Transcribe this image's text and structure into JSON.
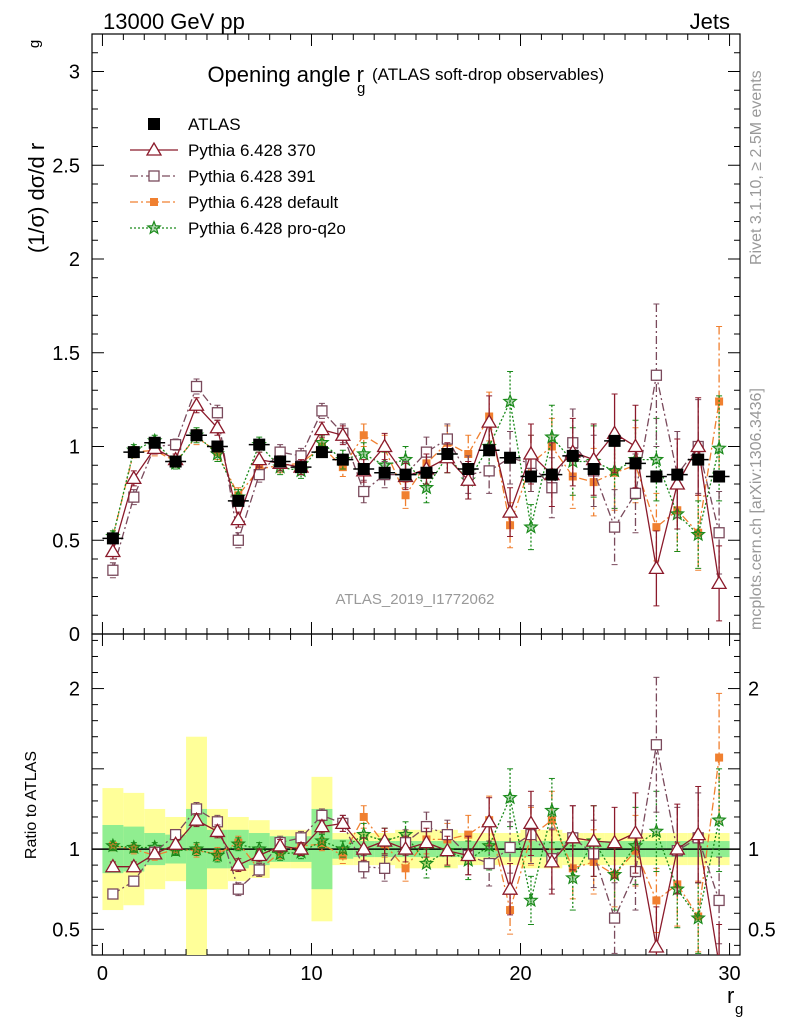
{
  "header": {
    "energy_label": "13000 GeV pp",
    "process_label": "Jets"
  },
  "side_labels": {
    "rivet": "Rivet 3.1.10, ≥ 2.5M events",
    "mcplots": "mcplots.cern.ch [arXiv:1306.3436]"
  },
  "watermark": "ATLAS_2019_I1772062",
  "colors": {
    "atlas": "#000000",
    "p370": "#8b1a2b",
    "p391": "#7a4a5c",
    "default": "#f08030",
    "proq2o": "#1a8a1a",
    "band_inner": "#90ee90",
    "band_outer": "#ffff99"
  },
  "chart_data": [
    {
      "type": "scatter",
      "title_main": "Opening angle r",
      "title_sub": "g",
      "title_extra": "(ATLAS soft-drop observables)",
      "ylabel": "(1/σ) dσ/d r",
      "ylabel_sub": "g",
      "ylim": [
        0,
        3.2
      ],
      "xlim": [
        -0.5,
        30.5
      ],
      "yticks": [
        {
          "v": 0.5,
          "label": "0.5"
        },
        {
          "v": 1,
          "label": "1"
        },
        {
          "v": 1.5,
          "label": "1.5"
        },
        {
          "v": 2,
          "label": "2"
        },
        {
          "v": 2.5,
          "label": "2.5"
        },
        {
          "v": 3,
          "label": "3"
        },
        {
          "v": 0,
          "label": "0"
        }
      ],
      "legend_position": "top-left",
      "x": [
        0.5,
        1.5,
        2.5,
        3.5,
        4.5,
        5.5,
        6.5,
        7.5,
        8.5,
        9.5,
        10.5,
        11.5,
        12.5,
        13.5,
        14.5,
        15.5,
        16.5,
        17.5,
        18.5,
        19.5,
        20.5,
        21.5,
        22.5,
        23.5,
        24.5,
        25.5,
        26.5,
        27.5,
        28.5,
        29.5
      ],
      "series": [
        {
          "key": "atlas",
          "name": "ATLAS",
          "marker": "filled-square",
          "line": "none",
          "values": [
            0.51,
            0.97,
            1.02,
            0.92,
            1.06,
            1.0,
            0.71,
            1.01,
            0.92,
            0.89,
            0.97,
            0.93,
            0.88,
            0.86,
            0.85,
            0.86,
            0.96,
            0.88,
            0.98,
            0.94,
            0.84,
            0.85,
            0.95,
            0.88,
            1.03,
            0.91,
            0.84,
            0.85,
            0.93,
            0.84
          ],
          "err": [
            0.03,
            0.03,
            0.03,
            0.03,
            0.03,
            0.03,
            0.03,
            0.03,
            0.03,
            0.03,
            0.03,
            0.03,
            0.03,
            0.03,
            0.03,
            0.03,
            0.03,
            0.03,
            0.03,
            0.03,
            0.03,
            0.03,
            0.03,
            0.03,
            0.03,
            0.03,
            0.03,
            0.03,
            0.03,
            0.03
          ]
        },
        {
          "key": "p370",
          "name": "Pythia 6.428 370",
          "marker": "open-triangle",
          "line": "solid",
          "values": [
            0.44,
            0.83,
            0.99,
            0.93,
            1.22,
            1.1,
            0.61,
            0.93,
            0.91,
            0.89,
            1.09,
            1.06,
            0.87,
            1.0,
            0.84,
            0.88,
            0.94,
            0.82,
            1.13,
            0.65,
            0.96,
            0.85,
            0.97,
            0.93,
            1.07,
            1.0,
            0.35,
            0.8,
            1.0,
            0.27
          ],
          "err": [
            0.04,
            0.04,
            0.03,
            0.03,
            0.04,
            0.04,
            0.04,
            0.04,
            0.04,
            0.04,
            0.04,
            0.05,
            0.06,
            0.07,
            0.07,
            0.08,
            0.08,
            0.1,
            0.14,
            0.13,
            0.16,
            0.17,
            0.18,
            0.19,
            0.21,
            0.22,
            0.2,
            0.24,
            0.26,
            0.2
          ]
        },
        {
          "key": "p391",
          "name": "Pythia 6.428 391",
          "marker": "open-square",
          "line": "dashdot",
          "values": [
            0.34,
            0.73,
            1.0,
            1.01,
            1.32,
            1.18,
            0.5,
            0.85,
            0.97,
            0.95,
            1.19,
            1.07,
            0.76,
            0.85,
            0.85,
            0.97,
            1.04,
            0.85,
            0.87,
            0.94,
            0.91,
            0.78,
            1.02,
            0.87,
            0.57,
            0.75,
            1.38,
            0.85,
            1.0,
            0.54
          ],
          "err": [
            0.04,
            0.04,
            0.03,
            0.03,
            0.04,
            0.04,
            0.04,
            0.04,
            0.04,
            0.04,
            0.04,
            0.05,
            0.06,
            0.07,
            0.07,
            0.08,
            0.08,
            0.1,
            0.12,
            0.14,
            0.15,
            0.16,
            0.18,
            0.19,
            0.2,
            0.21,
            0.38,
            0.23,
            0.25,
            0.22
          ]
        },
        {
          "key": "default",
          "name": "Pythia 6.428 default",
          "marker": "filled-square",
          "line": "dashdot",
          "values": [
            0.52,
            0.97,
            0.98,
            0.92,
            1.05,
            0.97,
            0.74,
            0.88,
            0.9,
            0.91,
            1.0,
            0.89,
            1.06,
            0.99,
            0.74,
            0.91,
            1.02,
            0.96,
            1.16,
            0.58,
            0.91,
            1.0,
            0.84,
            0.81,
            0.86,
            0.9,
            0.57,
            0.66,
            0.54,
            1.24
          ],
          "err": [
            0.03,
            0.03,
            0.03,
            0.03,
            0.04,
            0.04,
            0.04,
            0.04,
            0.04,
            0.04,
            0.04,
            0.05,
            0.06,
            0.07,
            0.07,
            0.08,
            0.09,
            0.1,
            0.13,
            0.12,
            0.15,
            0.15,
            0.17,
            0.18,
            0.2,
            0.2,
            0.18,
            0.22,
            0.2,
            0.4
          ]
        },
        {
          "key": "proq2o",
          "name": "Pythia 6.428 pro-q2o",
          "marker": "open-star",
          "line": "dotted",
          "values": [
            0.52,
            0.98,
            1.03,
            0.91,
            1.06,
            0.96,
            0.73,
            1.01,
            0.89,
            0.87,
            1.02,
            0.93,
            0.96,
            0.9,
            0.93,
            0.78,
            0.95,
            0.82,
            1.0,
            1.24,
            0.57,
            1.05,
            0.92,
            0.92,
            0.87,
            0.93,
            0.93,
            0.64,
            0.53,
            0.99
          ],
          "err": [
            0.03,
            0.03,
            0.03,
            0.03,
            0.04,
            0.04,
            0.04,
            0.04,
            0.04,
            0.04,
            0.04,
            0.05,
            0.06,
            0.07,
            0.07,
            0.08,
            0.09,
            0.1,
            0.13,
            0.16,
            0.12,
            0.17,
            0.18,
            0.19,
            0.2,
            0.21,
            0.22,
            0.2,
            0.18,
            0.28
          ]
        }
      ]
    },
    {
      "type": "scatter",
      "ylabel": "Ratio to ATLAS",
      "xlabel": "r",
      "xlabel_sub": "g",
      "ylim": [
        0.34,
        2.34
      ],
      "xlim": [
        -0.5,
        30.5
      ],
      "xticks": [
        {
          "v": 0,
          "label": "0"
        },
        {
          "v": 10,
          "label": "10"
        },
        {
          "v": 20,
          "label": "20"
        },
        {
          "v": 30,
          "label": "30"
        }
      ],
      "yticks": [
        {
          "v": 0.5,
          "label": "0.5"
        },
        {
          "v": 1,
          "label": "1"
        },
        {
          "v": 2,
          "label": "2"
        }
      ],
      "band_inner": [
        0.15,
        0.14,
        0.1,
        0.09,
        0.25,
        0.12,
        0.12,
        0.1,
        0.08,
        0.08,
        0.25,
        0.06,
        0.05,
        0.05,
        0.05,
        0.05,
        0.05,
        0.05,
        0.05,
        0.05,
        0.05,
        0.05,
        0.05,
        0.05,
        0.05,
        0.05,
        0.05,
        0.05,
        0.05,
        0.05
      ],
      "band_outer": [
        0.38,
        0.35,
        0.25,
        0.2,
        0.7,
        0.25,
        0.2,
        0.18,
        0.12,
        0.12,
        0.45,
        0.1,
        0.1,
        0.1,
        0.12,
        0.12,
        0.12,
        0.1,
        0.1,
        0.1,
        0.12,
        0.12,
        0.1,
        0.1,
        0.1,
        0.1,
        0.1,
        0.1,
        0.1,
        0.1
      ],
      "series": [
        {
          "key": "p370",
          "values": [
            0.89,
            0.89,
            0.97,
            1.03,
            1.18,
            1.11,
            0.9,
            0.96,
            1.02,
            1.0,
            1.14,
            1.16,
            1.0,
            1.05,
            1.0,
            1.04,
            0.99,
            0.96,
            1.17,
            0.75,
            1.16,
            0.92,
            1.07,
            1.05,
            1.04,
            1.1,
            0.39,
            1.0,
            1.09,
            0.28
          ],
          "err": [
            0.03,
            0.03,
            0.03,
            0.03,
            0.04,
            0.04,
            0.04,
            0.04,
            0.04,
            0.04,
            0.04,
            0.05,
            0.07,
            0.08,
            0.08,
            0.09,
            0.09,
            0.12,
            0.15,
            0.16,
            0.2,
            0.2,
            0.2,
            0.22,
            0.22,
            0.25,
            0.25,
            0.28,
            0.3,
            0.25
          ]
        },
        {
          "key": "p391",
          "values": [
            0.72,
            0.8,
            0.98,
            1.09,
            1.25,
            1.17,
            0.75,
            0.87,
            1.04,
            1.07,
            1.21,
            1.16,
            0.89,
            0.88,
            1.04,
            1.14,
            1.09,
            0.96,
            0.91,
            1.01,
            1.09,
            0.94,
            1.07,
            0.97,
            0.57,
            0.86,
            1.65,
            0.99,
            1.07,
            0.68
          ],
          "err": [
            0.03,
            0.03,
            0.03,
            0.03,
            0.04,
            0.04,
            0.04,
            0.04,
            0.04,
            0.04,
            0.04,
            0.05,
            0.07,
            0.08,
            0.08,
            0.09,
            0.09,
            0.12,
            0.14,
            0.16,
            0.18,
            0.19,
            0.2,
            0.21,
            0.22,
            0.24,
            0.42,
            0.27,
            0.28,
            0.27
          ]
        },
        {
          "key": "default",
          "values": [
            1.02,
            1.0,
            0.96,
            1.0,
            0.99,
            0.97,
            1.04,
            0.87,
            0.98,
            1.02,
            1.03,
            0.96,
            1.2,
            1.03,
            0.88,
            1.06,
            1.06,
            1.09,
            1.18,
            0.62,
            1.08,
            1.18,
            0.88,
            0.92,
            0.84,
            0.99,
            0.68,
            0.78,
            0.58,
            1.57
          ],
          "err": [
            0.03,
            0.03,
            0.03,
            0.03,
            0.04,
            0.04,
            0.04,
            0.04,
            0.04,
            0.04,
            0.04,
            0.05,
            0.07,
            0.08,
            0.08,
            0.09,
            0.1,
            0.12,
            0.15,
            0.15,
            0.18,
            0.18,
            0.19,
            0.2,
            0.2,
            0.22,
            0.2,
            0.26,
            0.22,
            0.4
          ]
        },
        {
          "key": "proq2o",
          "values": [
            1.02,
            1.01,
            1.01,
            0.99,
            1.0,
            0.96,
            1.03,
            1.0,
            0.97,
            0.98,
            1.05,
            1.0,
            1.09,
            1.05,
            1.09,
            0.91,
            0.99,
            0.93,
            1.02,
            1.32,
            0.68,
            1.24,
            0.82,
            1.05,
            0.84,
            1.02,
            1.11,
            0.75,
            0.57,
            1.18
          ],
          "err": [
            0.03,
            0.03,
            0.03,
            0.03,
            0.04,
            0.04,
            0.04,
            0.04,
            0.04,
            0.04,
            0.04,
            0.05,
            0.07,
            0.08,
            0.08,
            0.09,
            0.1,
            0.12,
            0.15,
            0.18,
            0.15,
            0.2,
            0.2,
            0.22,
            0.22,
            0.24,
            0.25,
            0.24,
            0.22,
            0.32
          ]
        }
      ]
    }
  ]
}
